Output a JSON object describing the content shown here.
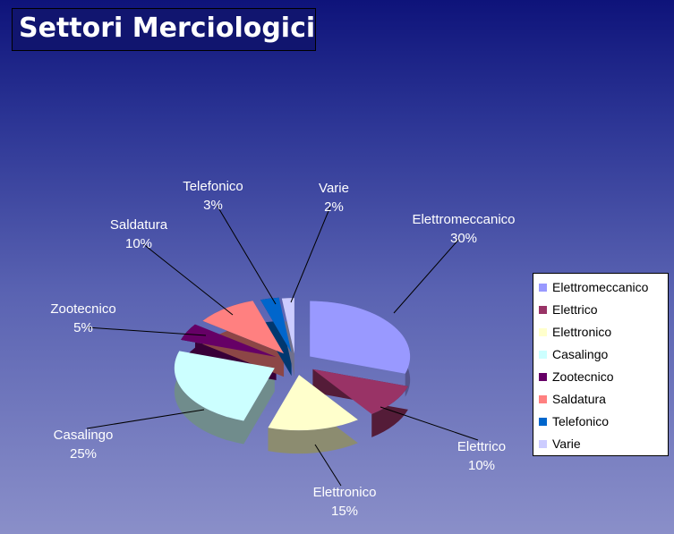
{
  "title": "Settori Merciologici",
  "chart_data": {
    "type": "pie",
    "title": "Settori Merciologici",
    "slices": [
      {
        "name": "Elettromeccanico",
        "value": 30,
        "label": "30%",
        "color": "#9999ff"
      },
      {
        "name": "Elettrico",
        "value": 10,
        "label": "10%",
        "color": "#993366"
      },
      {
        "name": "Elettronico",
        "value": 15,
        "label": "15%",
        "color": "#ffffcc"
      },
      {
        "name": "Casalingo",
        "value": 25,
        "label": "25%",
        "color": "#ccffff"
      },
      {
        "name": "Zootecnico",
        "value": 5,
        "label": "5%",
        "color": "#660066"
      },
      {
        "name": "Saldatura",
        "value": 10,
        "label": "10%",
        "color": "#ff8080"
      },
      {
        "name": "Telefonico",
        "value": 3,
        "label": "3%",
        "color": "#0066cc"
      },
      {
        "name": "Varie",
        "value": 2,
        "label": "2%",
        "color": "#ccccff"
      }
    ],
    "legend_position": "right",
    "style": "3d-exploded"
  }
}
